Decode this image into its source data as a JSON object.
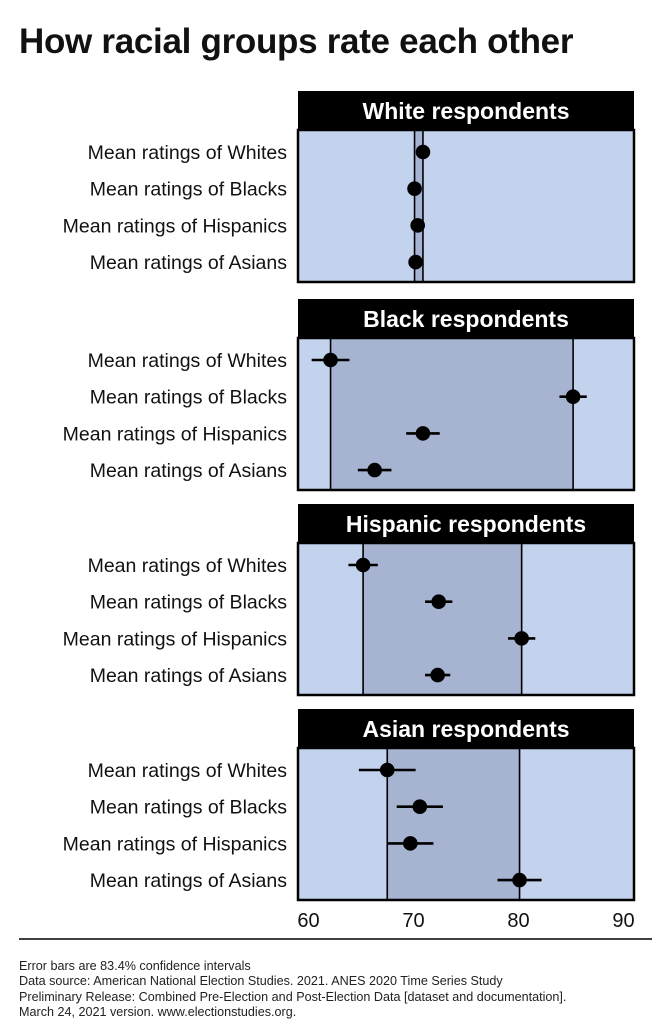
{
  "title": "How racial groups rate each other",
  "chart_data": {
    "type": "scatter",
    "subtype": "dot plot with error bars",
    "title": "How racial groups rate each other",
    "x_ticks": [
      60,
      70,
      80,
      90
    ],
    "xlim": [
      59,
      91
    ],
    "xlabel": "",
    "grid": false,
    "colors": {
      "panel_fill": "#c3d2ed",
      "range_fill": "#a6b4d1",
      "header_fill": "#000000",
      "header_text": "#ffffff",
      "point": "#000000"
    },
    "panels": [
      {
        "title": "White respondents",
        "rows": [
          {
            "label": "Mean ratings of Whites",
            "value": 70.9,
            "ci": [
              70.4,
              71.4
            ]
          },
          {
            "label": "Mean ratings of Blacks",
            "value": 70.1,
            "ci": [
              69.6,
              70.6
            ]
          },
          {
            "label": "Mean ratings of Hispanics",
            "value": 70.4,
            "ci": [
              69.9,
              70.9
            ]
          },
          {
            "label": "Mean ratings of Asians",
            "value": 70.2,
            "ci": [
              69.7,
              70.7
            ]
          }
        ]
      },
      {
        "title": "Black respondents",
        "rows": [
          {
            "label": "Mean ratings of Whites",
            "value": 62.1,
            "ci": [
              60.3,
              63.9
            ]
          },
          {
            "label": "Mean ratings of Blacks",
            "value": 85.2,
            "ci": [
              83.9,
              86.5
            ]
          },
          {
            "label": "Mean ratings of Hispanics",
            "value": 70.9,
            "ci": [
              69.3,
              72.5
            ]
          },
          {
            "label": "Mean ratings of Asians",
            "value": 66.3,
            "ci": [
              64.7,
              67.9
            ]
          }
        ]
      },
      {
        "title": "Hispanic respondents",
        "rows": [
          {
            "label": "Mean ratings of Whites",
            "value": 65.2,
            "ci": [
              63.8,
              66.6
            ]
          },
          {
            "label": "Mean ratings of Blacks",
            "value": 72.4,
            "ci": [
              71.1,
              73.7
            ]
          },
          {
            "label": "Mean ratings of Hispanics",
            "value": 80.3,
            "ci": [
              79.0,
              81.6
            ]
          },
          {
            "label": "Mean ratings of Asians",
            "value": 72.3,
            "ci": [
              71.1,
              73.5
            ]
          }
        ]
      },
      {
        "title": "Asian respondents",
        "rows": [
          {
            "label": "Mean ratings of Whites",
            "value": 67.5,
            "ci": [
              64.8,
              70.2
            ]
          },
          {
            "label": "Mean ratings of Blacks",
            "value": 70.6,
            "ci": [
              68.4,
              72.8
            ]
          },
          {
            "label": "Mean ratings of Hispanics",
            "value": 69.7,
            "ci": [
              67.5,
              71.9
            ]
          },
          {
            "label": "Mean ratings of Asians",
            "value": 80.1,
            "ci": [
              78.0,
              82.2
            ]
          }
        ]
      }
    ]
  },
  "footnote": {
    "lines": [
      "Error bars are 83.4% confidence intervals",
      "Data source: American National Election Studies. 2021. ANES 2020 Time Series Study",
      "Preliminary Release: Combined Pre-Election and Post-Election Data [dataset and documentation].",
      "March 24, 2021 version. www.electionstudies.org."
    ]
  }
}
